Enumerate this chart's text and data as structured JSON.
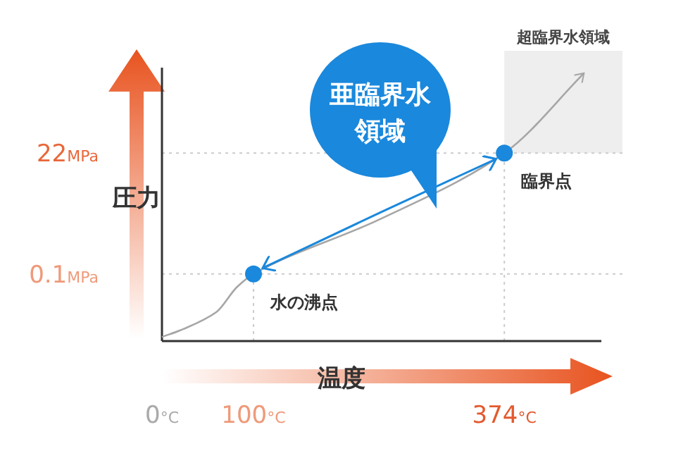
{
  "chart_data": {
    "type": "line",
    "xlabel": "温度",
    "ylabel": "圧力",
    "log": "y",
    "xlim": [
      0,
      480
    ],
    "ylim": [
      0.005,
      1000
    ],
    "xticks": [
      {
        "value": 0,
        "label": "0°C"
      },
      {
        "value": 100,
        "label": "100°C"
      },
      {
        "value": 374,
        "label": "374°C"
      }
    ],
    "yticks": [
      {
        "value": 0.1,
        "label": "0.1MPa"
      },
      {
        "value": 22,
        "label": "22MPa"
      }
    ],
    "series": [
      {
        "color": "#a6a6a6",
        "marker": "none",
        "x": [
          0,
          23,
          59,
          82,
          100,
          238,
          374,
          461
        ],
        "values": [
          0.006,
          0.0085,
          0.018,
          0.056,
          0.1,
          1.15,
          22,
          780
        ]
      },
      {
        "color": "#1a88dc",
        "marker": "none",
        "line_style": "solid",
        "x": [
          110,
          240,
          365
        ],
        "values": [
          0.13,
          1.6,
          17
        ]
      },
      {
        "type": "scatter",
        "color": "#1a88dc",
        "marker": "circle",
        "x": [
          100,
          374
        ],
        "values": [
          0.1,
          22
        ]
      }
    ],
    "ref_lines": [
      {
        "axis": "x",
        "value": 100,
        "color": "#cccccc",
        "line_style": "dotted"
      },
      {
        "axis": "x",
        "value": 374,
        "color": "#cccccc",
        "line_style": "dotted"
      },
      {
        "axis": "y",
        "value": 0.1,
        "color": "#cccccc",
        "line_style": "dotted"
      },
      {
        "axis": "y",
        "value": 22,
        "color": "#cccccc",
        "line_style": "dotted"
      }
    ],
    "bands": [
      {
        "axis": "x",
        "from": 374,
        "to": 480,
        "label": "超臨界水領域",
        "color": "#eeeeee"
      }
    ],
    "annotations": [
      {
        "text": "水の沸点",
        "x": 100,
        "y": 0.1
      },
      {
        "text": "臨界点",
        "x": 374,
        "y": 22
      },
      "亜臨界水領域"
    ],
    "grid": false
  }
}
